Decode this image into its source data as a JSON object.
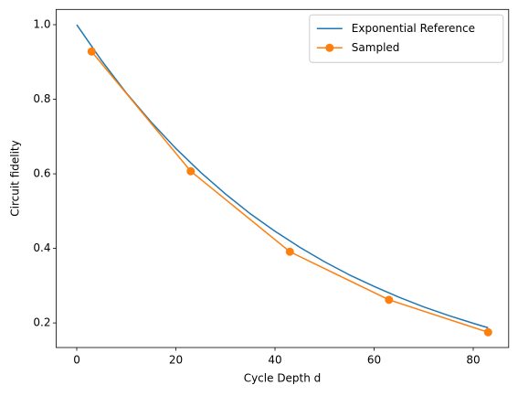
{
  "chart_data": {
    "type": "line",
    "xlabel": "Cycle Depth d",
    "ylabel": "Circuit fidelity",
    "xlim": [
      -4.15,
      87.15
    ],
    "ylim": [
      0.134,
      1.041
    ],
    "xticks": [
      0,
      20,
      40,
      60,
      80
    ],
    "yticks": [
      0.2,
      0.4,
      0.6,
      0.8,
      {
        "value": 1,
        "label": "1.0"
      }
    ],
    "legend": "upper right",
    "series": [
      {
        "name": "Exponential Reference",
        "color": "#1f77b4",
        "markers": false,
        "x": [
          0,
          5,
          10,
          15,
          20,
          25,
          30,
          35,
          40,
          45,
          50,
          55,
          60,
          65,
          70,
          75,
          80,
          83
        ],
        "values": [
          1.0,
          0.904,
          0.817,
          0.739,
          0.668,
          0.604,
          0.546,
          0.493,
          0.446,
          0.403,
          0.364,
          0.329,
          0.298,
          0.269,
          0.243,
          0.22,
          0.199,
          0.187
        ]
      },
      {
        "name": "Sampled",
        "color": "#ff7f0e",
        "markers": true,
        "x": [
          3,
          23,
          43,
          63,
          83
        ],
        "values": [
          0.928,
          0.607,
          0.391,
          0.262,
          0.175
        ]
      }
    ]
  }
}
